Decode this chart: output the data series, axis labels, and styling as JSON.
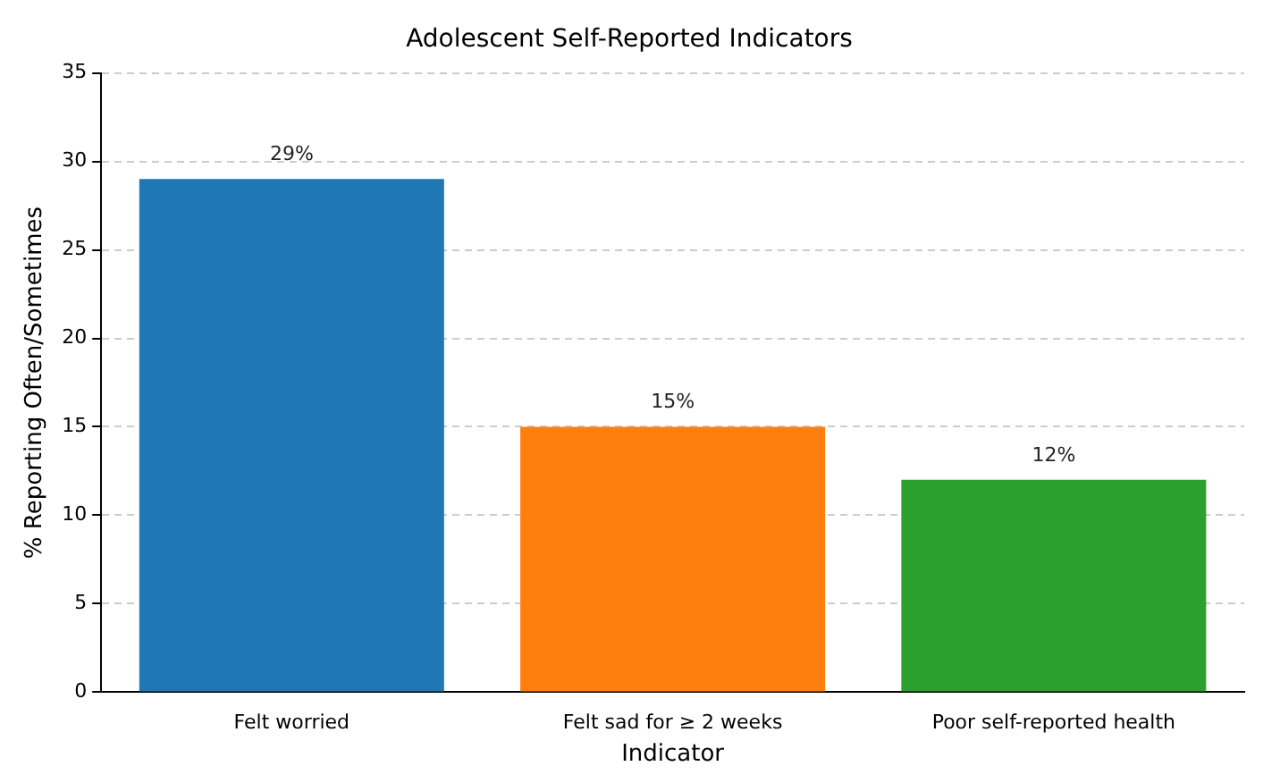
{
  "chart_data": {
    "type": "bar",
    "title": "Adolescent Self-Reported Indicators",
    "xlabel": "Indicator",
    "ylabel": "% Reporting Often/Sometimes",
    "categories": [
      "Felt worried",
      "Felt sad for ≥ 2 weeks",
      "Poor self-reported health"
    ],
    "values": [
      29,
      15,
      12
    ],
    "colors": [
      "#1f77b4",
      "#ff7f0e",
      "#2ca02c"
    ],
    "value_labels": [
      "29%",
      "15%",
      "12%"
    ],
    "ylim": [
      0,
      35
    ],
    "yticks": [
      0,
      5,
      10,
      15,
      20,
      25,
      30,
      35
    ],
    "grid": "y",
    "legend": false
  }
}
